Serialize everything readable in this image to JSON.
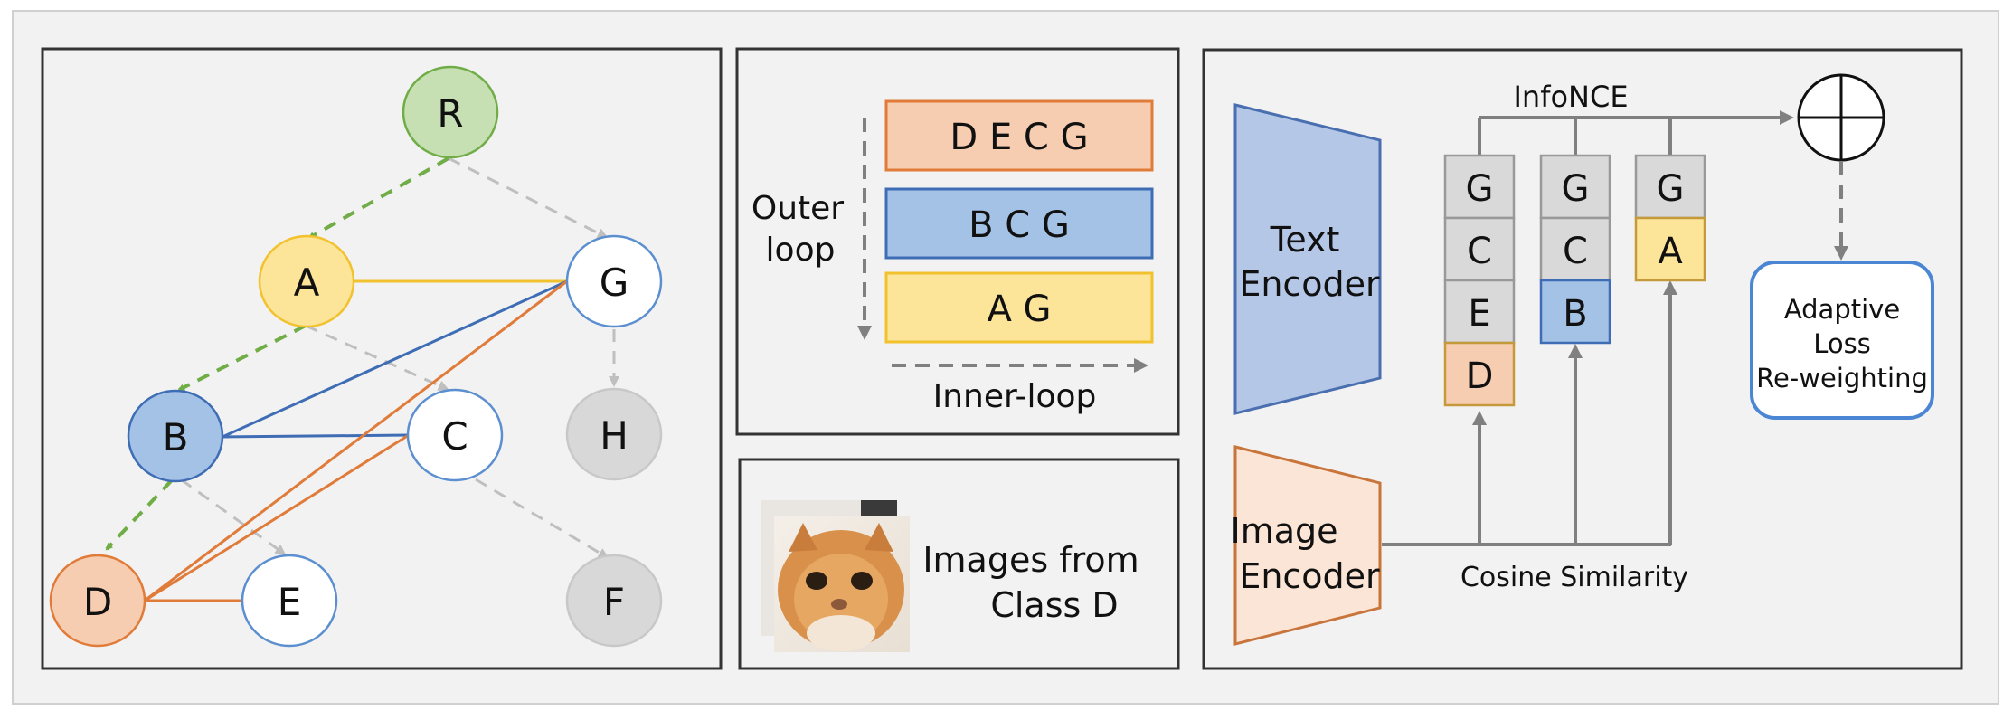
{
  "colors": {
    "background": "#f2f2f2",
    "panel_border": "#333333",
    "root_green": "#c6e0b4",
    "class_a_yellow": "#fce599",
    "class_b_blue": "#a4c2e6",
    "class_d_orange": "#f6cdb0",
    "white_node": "#ffffff",
    "gray_node": "#d8d8d8",
    "green_edge": "#70ad47",
    "gray_edge": "#bfbfbf",
    "yellow_edge": "#f2c12e",
    "blue_edge": "#3e6db5",
    "orange_edge": "#e07b39",
    "arrow_gray": "#808080"
  },
  "hierarchy_panel": {
    "nodes": [
      {
        "id": "R",
        "label": "R",
        "style": "root"
      },
      {
        "id": "A",
        "label": "A",
        "style": "yellow"
      },
      {
        "id": "G",
        "label": "G",
        "style": "white"
      },
      {
        "id": "B",
        "label": "B",
        "style": "blue"
      },
      {
        "id": "C",
        "label": "C",
        "style": "white"
      },
      {
        "id": "H",
        "label": "H",
        "style": "gray"
      },
      {
        "id": "D",
        "label": "D",
        "style": "orange"
      },
      {
        "id": "E",
        "label": "E",
        "style": "white"
      },
      {
        "id": "F",
        "label": "F",
        "style": "gray"
      }
    ]
  },
  "loop_panel": {
    "bars": [
      {
        "label": "D E C G",
        "style": "orange"
      },
      {
        "label": "B C G",
        "style": "blue"
      },
      {
        "label": "A G",
        "style": "yellow"
      }
    ],
    "outer_loop_line1": "Outer",
    "outer_loop_line2": "loop",
    "inner_loop_label": "Inner-loop"
  },
  "images_panel": {
    "caption_line1": "Images from",
    "caption_line2": "Class D",
    "image_icon": "kitten-photo"
  },
  "model_panel": {
    "text_encoder_line1": "Text",
    "text_encoder_line2": "Encoder",
    "image_encoder_line1": "Image",
    "image_encoder_line2": "Encoder",
    "infonce_label": "InfoNCE",
    "cosine_label": "Cosine Similarity",
    "sum_icon": "circled-plus-icon",
    "adaptive_line1": "Adaptive",
    "adaptive_line2": "Loss",
    "adaptive_line3": "Re-weighting",
    "stacks": [
      [
        {
          "label": "G",
          "style": "gray"
        },
        {
          "label": "C",
          "style": "gray"
        },
        {
          "label": "E",
          "style": "gray"
        },
        {
          "label": "D",
          "style": "orange"
        }
      ],
      [
        {
          "label": "G",
          "style": "gray"
        },
        {
          "label": "C",
          "style": "gray"
        },
        {
          "label": "B",
          "style": "blue"
        }
      ],
      [
        {
          "label": "G",
          "style": "gray"
        },
        {
          "label": "A",
          "style": "yellow"
        }
      ]
    ]
  }
}
